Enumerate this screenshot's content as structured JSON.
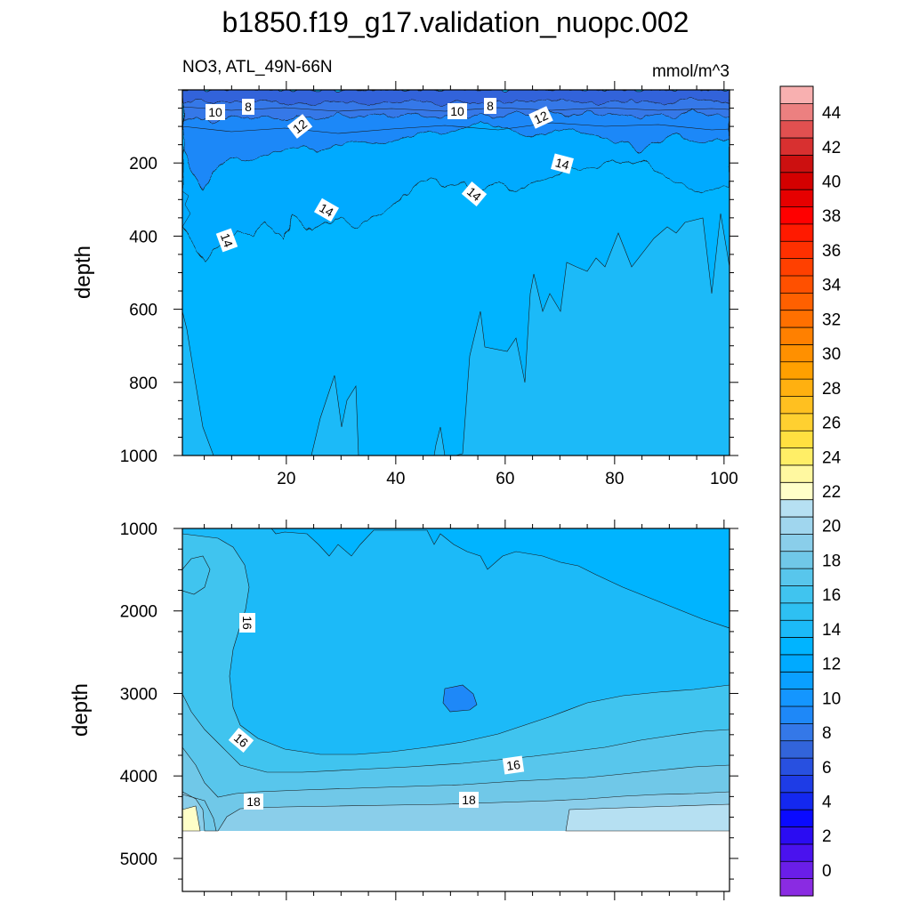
{
  "title": "b1850.f19_g17.validation_nuopc.002",
  "subtitle_left": "NO3, ATL_49N-66N",
  "subtitle_right": "mmol/m^3",
  "chart_data": [
    {
      "type": "contour",
      "panel": "upper",
      "ylabel": "depth",
      "xlim": [
        1,
        101
      ],
      "ylim": [
        0,
        1000
      ],
      "y_inverted": true,
      "x_ticks": [
        20,
        40,
        60,
        80,
        100
      ],
      "y_ticks": [
        200,
        400,
        600,
        800,
        1000
      ],
      "contour_labels": [
        "10",
        "8",
        "12",
        "10",
        "8",
        "12",
        "14",
        "14",
        "14",
        "14"
      ],
      "dominant_values": {
        "surface": 8,
        "upper_mixed": 12,
        "interior": 14,
        "deep": 15
      }
    },
    {
      "type": "contour",
      "panel": "lower",
      "ylabel": "depth",
      "xlim": [
        1,
        101
      ],
      "ylim": [
        1000,
        5400
      ],
      "y_inverted": true,
      "y_ticks": [
        1000,
        2000,
        3000,
        4000,
        5000
      ],
      "contour_labels": [
        "16",
        "16",
        "16",
        "18",
        "18"
      ],
      "dominant_values": {
        "interior": 14,
        "bottom": 18,
        "max": 22
      },
      "data_bottom_depth": 4600
    }
  ],
  "colorbar": {
    "levels": [
      -1,
      0,
      1,
      2,
      3,
      4,
      5,
      6,
      7,
      8,
      9,
      10,
      11,
      12,
      13,
      14,
      15,
      16,
      17,
      18,
      19,
      20,
      21,
      22,
      23,
      24,
      25,
      26,
      27,
      28,
      29,
      30,
      31,
      32,
      33,
      34,
      35,
      36,
      37,
      38,
      39,
      40,
      41,
      42,
      43,
      44,
      45,
      46
    ],
    "tick_labels": [
      "0",
      "2",
      "4",
      "6",
      "8",
      "10",
      "12",
      "14",
      "16",
      "18",
      "20",
      "22",
      "24",
      "26",
      "28",
      "30",
      "32",
      "34",
      "36",
      "38",
      "40",
      "42",
      "44"
    ],
    "colors": [
      "#8a2be2",
      "#6a1ee8",
      "#4a12ee",
      "#2b0cf2",
      "#0a0aff",
      "#1428f0",
      "#1e3ce6",
      "#2850e0",
      "#3264da",
      "#3478e8",
      "#1e88f8",
      "#1496ff",
      "#0aa0ff",
      "#00aaff",
      "#00b4ff",
      "#1cbaf8",
      "#2ec0f2",
      "#40c4ef",
      "#58c6ec",
      "#70c8e8",
      "#8aceea",
      "#a0d6ee",
      "#b6e0f2",
      "#ffffc8",
      "#fff8a0",
      "#ffee66",
      "#ffe040",
      "#ffd030",
      "#ffc020",
      "#ffb010",
      "#ffa000",
      "#ff9000",
      "#ff8000",
      "#ff7000",
      "#ff6000",
      "#ff5000",
      "#ff4000",
      "#ff3000",
      "#ff1a00",
      "#ff0000",
      "#e60000",
      "#d40000",
      "#cc1010",
      "#d83030",
      "#e25050",
      "#ec8080",
      "#f8b0b0"
    ]
  }
}
